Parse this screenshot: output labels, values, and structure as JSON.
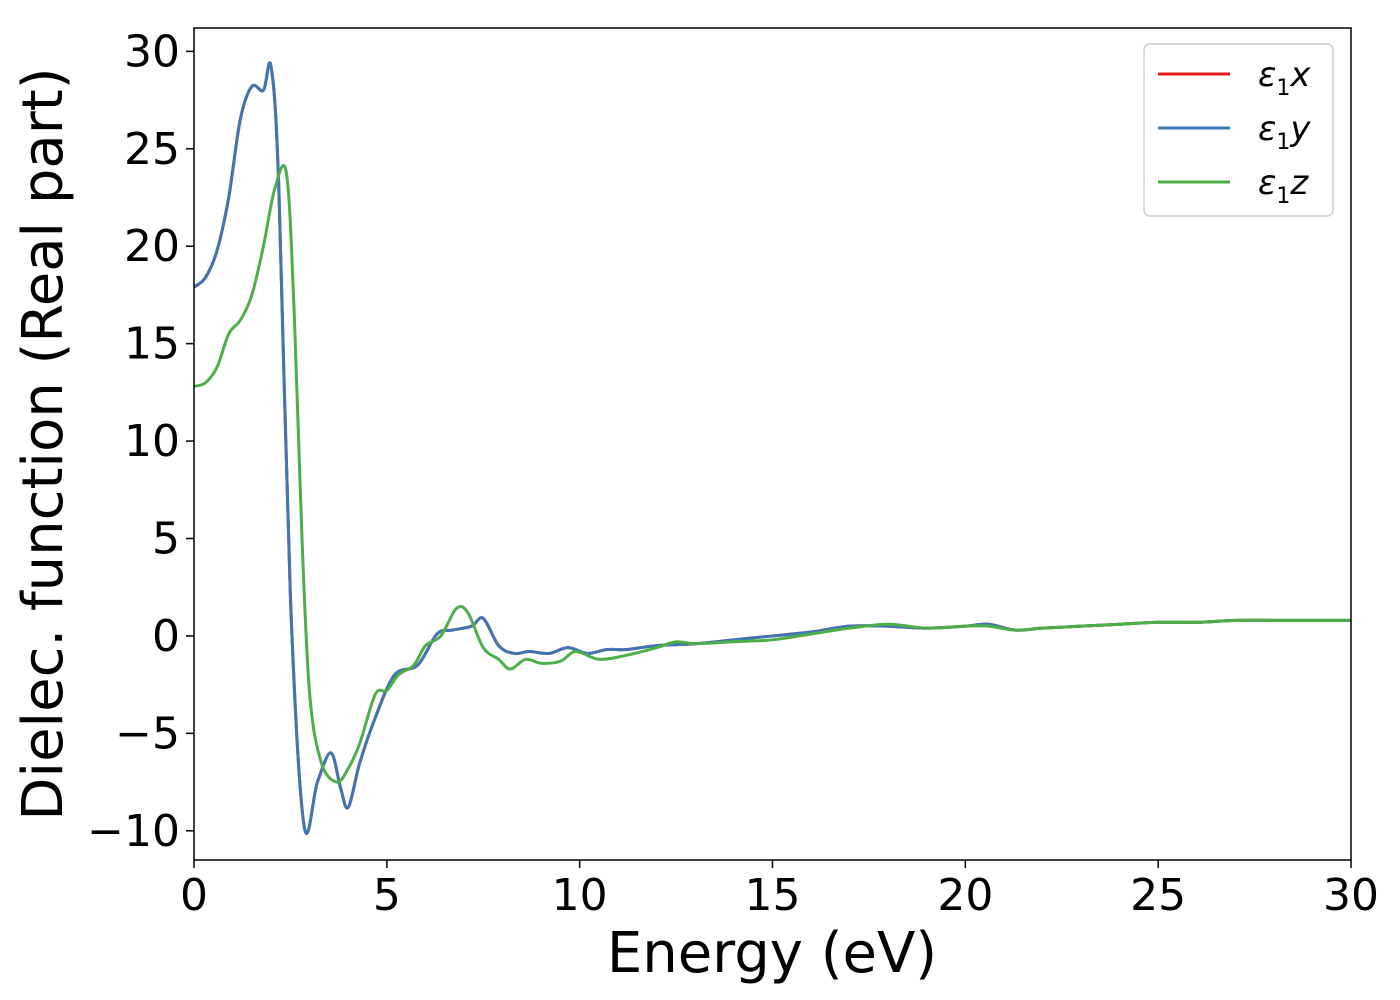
{
  "chart_data": {
    "type": "line",
    "title": "",
    "xlabel": "Energy (eV)",
    "ylabel": "Dielec. function (Real part)",
    "xlim": [
      0,
      30
    ],
    "ylim": [
      -11.5,
      31.2
    ],
    "xticks": [
      0,
      5,
      10,
      15,
      20,
      25,
      30
    ],
    "xtick_labels": [
      "0",
      "5",
      "10",
      "15",
      "20",
      "25",
      "30"
    ],
    "yticks": [
      -10,
      -5,
      0,
      5,
      10,
      15,
      20,
      25,
      30
    ],
    "ytick_labels": [
      "−10",
      "−5",
      "0",
      "5",
      "10",
      "15",
      "20",
      "25",
      "30"
    ],
    "grid": false,
    "legend_position": "top-right",
    "series": [
      {
        "name": "ε1x",
        "legend_main": "ε",
        "legend_sub": "1",
        "legend_tail": "x",
        "color": "#e41a1c",
        "x": [
          0,
          0.3,
          0.6,
          0.9,
          1.2,
          1.5,
          1.8,
          2.0,
          2.2,
          2.5,
          2.85,
          3.2,
          3.55,
          3.8,
          4.0,
          4.3,
          4.7,
          5.2,
          5.8,
          6.3,
          6.7,
          7.2,
          7.5,
          7.9,
          8.3,
          8.7,
          9.2,
          9.7,
          10.2,
          10.7,
          11.2,
          12,
          13,
          14,
          15,
          16,
          17,
          18,
          19,
          20,
          20.6,
          21.3,
          22,
          23,
          24,
          25,
          26,
          27,
          28,
          29,
          30
        ],
        "y": [
          17.9,
          18.4,
          19.8,
          22.5,
          26.5,
          28.2,
          28.0,
          29.2,
          23.0,
          2.0,
          -9.7,
          -7.5,
          -6.0,
          -7.8,
          -8.8,
          -6.5,
          -4.2,
          -2.0,
          -1.5,
          0.1,
          0.3,
          0.5,
          0.9,
          -0.5,
          -0.9,
          -0.8,
          -0.9,
          -0.6,
          -0.9,
          -0.7,
          -0.7,
          -0.5,
          -0.4,
          -0.2,
          0.0,
          0.2,
          0.5,
          0.5,
          0.4,
          0.5,
          0.6,
          0.3,
          0.4,
          0.5,
          0.6,
          0.7,
          0.7,
          0.8,
          0.8,
          0.8,
          0.8
        ]
      },
      {
        "name": "ε1y",
        "legend_main": "ε",
        "legend_sub": "1",
        "legend_tail": "y",
        "color": "#3f77b3",
        "x": [
          0,
          0.3,
          0.6,
          0.9,
          1.2,
          1.5,
          1.8,
          2.0,
          2.2,
          2.5,
          2.85,
          3.2,
          3.55,
          3.8,
          4.0,
          4.3,
          4.7,
          5.2,
          5.8,
          6.3,
          6.7,
          7.2,
          7.5,
          7.9,
          8.3,
          8.7,
          9.2,
          9.7,
          10.2,
          10.7,
          11.2,
          12,
          13,
          14,
          15,
          16,
          17,
          18,
          19,
          20,
          20.6,
          21.3,
          22,
          23,
          24,
          25,
          26,
          27,
          28,
          29,
          30
        ],
        "y": [
          17.9,
          18.4,
          19.8,
          22.5,
          26.5,
          28.2,
          28.0,
          29.2,
          23.0,
          2.0,
          -9.7,
          -7.5,
          -6.0,
          -7.8,
          -8.8,
          -6.5,
          -4.2,
          -2.0,
          -1.5,
          0.1,
          0.3,
          0.5,
          0.9,
          -0.5,
          -0.9,
          -0.8,
          -0.9,
          -0.6,
          -0.9,
          -0.7,
          -0.7,
          -0.5,
          -0.4,
          -0.2,
          0.0,
          0.2,
          0.5,
          0.5,
          0.4,
          0.5,
          0.6,
          0.3,
          0.4,
          0.5,
          0.6,
          0.7,
          0.7,
          0.8,
          0.8,
          0.8,
          0.8
        ]
      },
      {
        "name": "ε1z",
        "legend_main": "ε",
        "legend_sub": "1",
        "legend_tail": "z",
        "color": "#4daf4a",
        "x": [
          0,
          0.3,
          0.6,
          0.9,
          1.2,
          1.5,
          1.8,
          2.1,
          2.4,
          2.6,
          2.8,
          3.0,
          3.3,
          3.7,
          4.0,
          4.3,
          4.7,
          5.0,
          5.3,
          5.7,
          6.0,
          6.4,
          6.8,
          7.1,
          7.5,
          7.9,
          8.2,
          8.6,
          9.0,
          9.5,
          9.9,
          10.5,
          11.2,
          12,
          12.5,
          13,
          14,
          15,
          16,
          17,
          18,
          19,
          20,
          20.6,
          21.3,
          22,
          23,
          24,
          25,
          26,
          27,
          28,
          29,
          30
        ],
        "y": [
          12.8,
          13.0,
          13.8,
          15.5,
          16.2,
          17.5,
          20.0,
          23.0,
          23.7,
          16.5,
          5.0,
          -3.0,
          -6.5,
          -7.5,
          -6.8,
          -5.5,
          -3.0,
          -2.8,
          -2.0,
          -1.5,
          -0.5,
          0.0,
          1.4,
          1.2,
          -0.6,
          -1.2,
          -1.7,
          -1.2,
          -1.4,
          -1.3,
          -0.8,
          -1.2,
          -1.0,
          -0.6,
          -0.3,
          -0.4,
          -0.3,
          -0.2,
          0.1,
          0.4,
          0.6,
          0.4,
          0.5,
          0.5,
          0.3,
          0.4,
          0.5,
          0.6,
          0.7,
          0.7,
          0.8,
          0.8,
          0.8,
          0.8
        ]
      }
    ]
  }
}
